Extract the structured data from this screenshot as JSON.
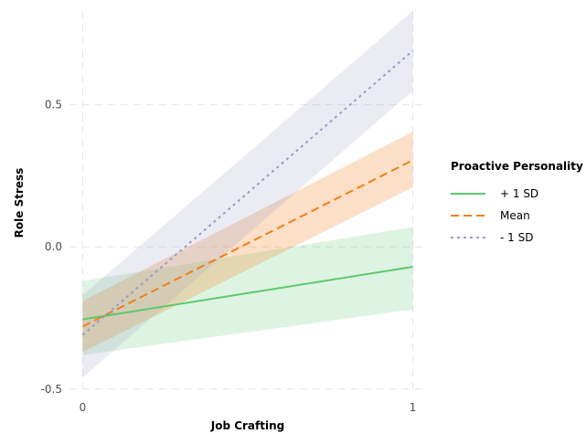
{
  "chart_data": {
    "type": "line",
    "xlabel": "Job Crafting",
    "ylabel": "Role Stress",
    "xlim": [
      -0.04,
      1.04
    ],
    "ylim": [
      -0.52,
      0.83
    ],
    "x_ticks": [
      0,
      1
    ],
    "x_tick_labels": [
      "0",
      "1"
    ],
    "y_ticks": [
      -0.5,
      0.0,
      0.5
    ],
    "y_tick_labels": [
      "-0.5",
      "0.0",
      "0.5"
    ],
    "grid": true,
    "legend": {
      "title": "Proactive Personality",
      "placement": "right"
    },
    "series": [
      {
        "name": "+ 1 SD",
        "color": "#5cc96e",
        "dash": "solid",
        "x": [
          0,
          1
        ],
        "y": [
          -0.255,
          -0.07
        ],
        "ci_lower": [
          -0.38,
          -0.22
        ],
        "ci_upper": [
          -0.12,
          0.07
        ],
        "band_opacity": 0.2
      },
      {
        "name": "Mean",
        "color": "#f07f1d",
        "dash": "dashed",
        "x": [
          0,
          1
        ],
        "y": [
          -0.28,
          0.305
        ],
        "ci_lower": [
          -0.37,
          0.21
        ],
        "ci_upper": [
          -0.19,
          0.405
        ],
        "band_opacity": 0.25
      },
      {
        "name": "- 1 SD",
        "color": "#9b9bc9",
        "dash": "dotted",
        "x": [
          0,
          1
        ],
        "y": [
          -0.31,
          0.69
        ],
        "ci_lower": [
          -0.46,
          0.55
        ],
        "ci_upper": [
          -0.17,
          0.83
        ],
        "band_opacity": 0.2
      }
    ]
  }
}
